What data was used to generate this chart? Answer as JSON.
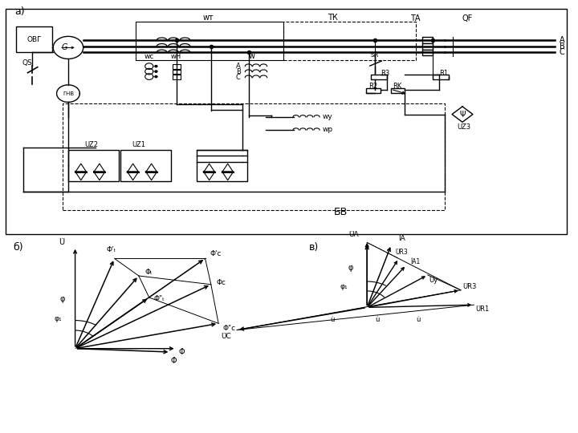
{
  "bg_color": "#ffffff",
  "line_color": "#000000",
  "panel_a_label": "а)",
  "panel_b_label": "б)",
  "panel_v_label": "в)"
}
